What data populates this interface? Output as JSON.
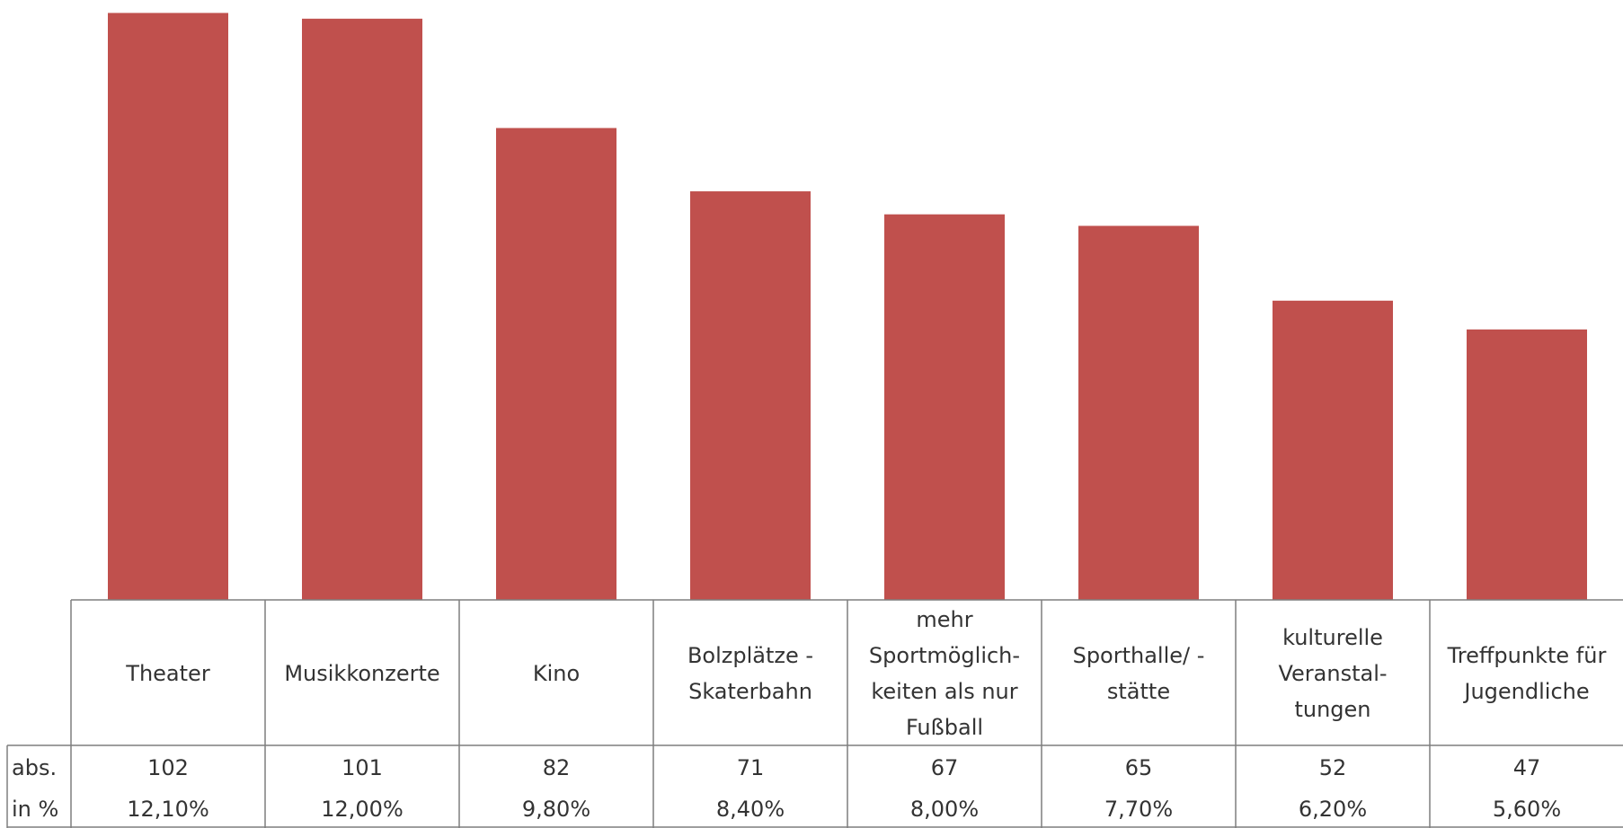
{
  "chart_data": {
    "type": "bar",
    "categories": [
      "Theater",
      "Musikkonzerte",
      "Kino",
      "Bolzplätze -\nSkaterbahn",
      "mehr\nSportmöglich-\nkeiten als nur\nFußball",
      "Sporthalle/ -\nstätte",
      "kulturelle\nVeranstal-\ntungen",
      "Treffpunkte für\nJugendliche"
    ],
    "series": [
      {
        "values": [
          102,
          101,
          82,
          71,
          67,
          65,
          52,
          47
        ]
      }
    ],
    "table": {
      "row_labels": [
        "abs.",
        "in %"
      ],
      "abs": [
        "102",
        "101",
        "82",
        "71",
        "67",
        "65",
        "52",
        "47"
      ],
      "percent": [
        "12,10%",
        "12,00%",
        "9,80%",
        "8,40%",
        "8,00%",
        "7,70%",
        "6,20%",
        "5,60%"
      ]
    },
    "ylim": [
      0,
      103
    ],
    "grid": false,
    "colors": {
      "bar": "#c0504d",
      "border": "#7f7f7f"
    }
  }
}
